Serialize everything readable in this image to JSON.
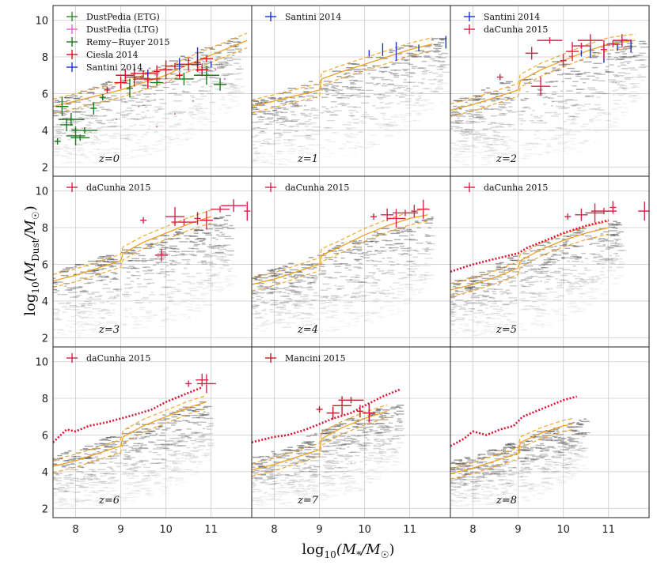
{
  "figure": {
    "xlabel_main": "log",
    "xlabel_sub": "10",
    "xlabel_expr": "(M",
    "xlabel_star": "*",
    "xlabel_sep": "/M",
    "xlabel_sun": "☉",
    "xlabel_close": ")",
    "ylabel_main": "log",
    "ylabel_sub": "10",
    "ylabel_expr": "(M",
    "ylabel_dust": "Dust",
    "ylabel_sep": "/M",
    "ylabel_sun": "☉",
    "ylabel_close": ")"
  },
  "colors": {
    "grey_cloud": "#555555",
    "median": "#f0a020",
    "sph": "#dd1133",
    "etg": "#2e8b22",
    "ltg": "#e060e0",
    "remy": "#1a7a1a",
    "ciesla": "#e01020",
    "santini": "#1a30d0",
    "dacunha": "#d8224a",
    "mancini": "#b8202a"
  },
  "chart_data": {
    "type": "scatter",
    "xlim": [
      7.5,
      11.9
    ],
    "ylim": [
      1.5,
      10.8
    ],
    "xticks": [
      "8",
      "9",
      "10",
      "11"
    ],
    "xtick_values": [
      8,
      9,
      10,
      11
    ],
    "yticks": [
      "2",
      "4",
      "6",
      "8",
      "10"
    ],
    "ytick_values": [
      2,
      4,
      6,
      8,
      10
    ],
    "grid": true,
    "panels": [
      {
        "z": "z=0",
        "cloud": {
          "x1": 7.5,
          "x2": 11.7,
          "upper": [
            5.6,
            6.2,
            6.8,
            7.4,
            8.0,
            8.6,
            9.2
          ],
          "lower": [
            2.2,
            2.2,
            2.3,
            2.6,
            3.2,
            4.2,
            5.6
          ]
        },
        "median_x": [
          7.5,
          8.0,
          8.5,
          9.0,
          9.5,
          10.0,
          10.5,
          11.0,
          11.5,
          11.8
        ],
        "median_y": [
          5.3,
          5.6,
          5.9,
          6.2,
          6.6,
          7.0,
          7.6,
          8.1,
          8.6,
          8.9
        ],
        "spread": 0.4,
        "sph_x": [],
        "sph_y": [],
        "legend": [
          "DustPedia (ETG)",
          "DustPedia (LTG)",
          "Remy−Ruyer 2015",
          "Ciesla 2014",
          "Santini 2014"
        ],
        "legend_colors": [
          "etg",
          "ltg",
          "remy",
          "ciesla",
          "santini"
        ],
        "obs": [
          {
            "series": "ltg",
            "x": [
              8.4,
              8.8,
              9.2,
              9.6,
              10.0,
              10.4,
              10.8,
              11.1,
              9.4,
              10.2,
              8.9,
              10.6,
              9.8,
              11.3
            ],
            "y": [
              6.0,
              6.3,
              6.4,
              6.7,
              6.6,
              6.9,
              7.1,
              7.3,
              5.3,
              4.9,
              4.6,
              5.6,
              4.2,
              6.8
            ]
          },
          {
            "series": "remy",
            "x": [
              7.6,
              7.8,
              8.0,
              8.2,
              8.4,
              7.7,
              8.1,
              7.9,
              9.2,
              9.8,
              10.4,
              10.9,
              8.6,
              11.2
            ],
            "y": [
              3.4,
              4.3,
              3.7,
              4.0,
              5.2,
              5.3,
              3.6,
              4.6,
              6.3,
              6.6,
              6.8,
              7.0,
              5.8,
              6.5
            ]
          },
          {
            "series": "ciesla",
            "x": [
              8.7,
              9.0,
              9.3,
              9.5,
              9.8,
              10.0,
              10.2,
              10.5,
              10.7,
              10.9,
              9.1,
              9.6,
              10.3,
              10.8
            ],
            "y": [
              6.2,
              6.6,
              6.9,
              7.1,
              7.2,
              7.3,
              7.5,
              7.6,
              7.7,
              7.9,
              7.0,
              6.8,
              7.0,
              7.3
            ]
          },
          {
            "series": "santini",
            "x": [
              9.6,
              10.3,
              10.7,
              11.0
            ],
            "y": [
              7.1,
              7.6,
              8.0,
              7.6
            ]
          }
        ]
      },
      {
        "z": "z=1",
        "cloud": {
          "x1": 7.5,
          "x2": 11.8,
          "upper": [
            5.6,
            6.2,
            6.9,
            7.6,
            8.2,
            8.7,
            9.2
          ],
          "lower": [
            2.1,
            2.1,
            2.3,
            2.6,
            3.0,
            4.2,
            5.6
          ]
        },
        "median_x": [
          7.5,
          8.0,
          8.5,
          9.0,
          9.05,
          9.5,
          10.0,
          10.5,
          11.0,
          11.5
        ],
        "median_y": [
          5.3,
          5.6,
          5.9,
          6.2,
          6.8,
          7.2,
          7.6,
          8.0,
          8.4,
          8.7
        ],
        "spread": 0.35,
        "sph_x": [],
        "sph_y": [],
        "legend": [
          "Santini 2014"
        ],
        "legend_colors": [
          "santini"
        ],
        "obs": [
          {
            "series": "santini",
            "x": [
              10.1,
              10.4,
              10.7,
              11.2,
              11.8
            ],
            "y": [
              8.2,
              8.4,
              8.3,
              8.5,
              8.8
            ]
          }
        ]
      },
      {
        "z": "z=2",
        "cloud": {
          "x1": 7.5,
          "x2": 11.8,
          "upper": [
            5.5,
            6.2,
            6.9,
            7.6,
            8.2,
            8.8,
            9.3
          ],
          "lower": [
            2.1,
            2.1,
            2.3,
            2.5,
            2.8,
            4.0,
            5.8
          ]
        },
        "median_x": [
          7.5,
          8.0,
          8.5,
          9.0,
          9.05,
          9.5,
          10.0,
          10.5,
          11.0,
          11.6
        ],
        "median_y": [
          5.1,
          5.4,
          5.8,
          6.2,
          6.7,
          7.3,
          7.8,
          8.3,
          8.7,
          8.9
        ],
        "spread": 0.35,
        "sph_x": [],
        "sph_y": [],
        "legend": [
          "Santini 2014",
          "daCunha 2015"
        ],
        "legend_colors": [
          "santini",
          "dacunha"
        ],
        "obs": [
          {
            "series": "santini",
            "x": [
              10.4,
              10.6,
              10.9,
              11.2,
              11.5
            ],
            "y": [
              8.2,
              8.3,
              8.2,
              8.5,
              8.6
            ]
          },
          {
            "series": "dacunha",
            "x": [
              8.6,
              9.3,
              9.5,
              9.7,
              10.0,
              10.2,
              10.4,
              10.6,
              10.9,
              11.1,
              11.3
            ],
            "y": [
              6.9,
              8.2,
              6.4,
              8.9,
              7.8,
              8.3,
              8.6,
              8.9,
              8.4,
              8.7,
              8.9
            ]
          }
        ]
      },
      {
        "z": "z=3",
        "cloud": {
          "x1": 7.5,
          "x2": 11.5,
          "upper": [
            5.5,
            6.2,
            6.9,
            7.6,
            8.3,
            8.8
          ],
          "lower": [
            2.1,
            2.1,
            2.3,
            2.6,
            3.2,
            5.0
          ]
        },
        "median_x": [
          7.5,
          8.0,
          8.5,
          9.0,
          9.05,
          9.5,
          10.0,
          10.5,
          11.0
        ],
        "median_y": [
          5.1,
          5.4,
          5.8,
          6.2,
          6.6,
          7.2,
          7.7,
          8.2,
          8.6
        ],
        "spread": 0.35,
        "sph_x": [],
        "sph_y": [],
        "legend": [
          "daCunha 2015"
        ],
        "legend_colors": [
          "dacunha"
        ],
        "obs": [
          {
            "series": "dacunha",
            "x": [
              9.5,
              9.9,
              10.2,
              10.4,
              10.7,
              10.9,
              11.2,
              11.5,
              11.8
            ],
            "y": [
              8.4,
              6.5,
              8.6,
              8.3,
              8.5,
              8.4,
              9.0,
              9.2,
              8.9
            ]
          }
        ]
      },
      {
        "z": "z=4",
        "cloud": {
          "x1": 7.5,
          "x2": 11.5,
          "upper": [
            5.3,
            6.0,
            6.8,
            7.5,
            8.2,
            8.8
          ],
          "lower": [
            2.1,
            2.1,
            2.3,
            2.6,
            3.2,
            5.0
          ]
        },
        "median_x": [
          7.5,
          8.0,
          8.5,
          9.0,
          9.05,
          9.5,
          10.0,
          10.5,
          11.0,
          11.4
        ],
        "median_y": [
          4.9,
          5.2,
          5.6,
          6.0,
          6.5,
          7.0,
          7.6,
          8.1,
          8.5,
          8.7
        ],
        "spread": 0.35,
        "sph_x": [],
        "sph_y": [],
        "legend": [
          "daCunha 2015"
        ],
        "legend_colors": [
          "dacunha"
        ],
        "obs": [
          {
            "series": "dacunha",
            "x": [
              10.2,
              10.5,
              10.7,
              10.9,
              11.1,
              11.3
            ],
            "y": [
              8.6,
              8.7,
              8.5,
              8.8,
              8.9,
              9.0
            ]
          }
        ]
      },
      {
        "z": "z=5",
        "cloud": {
          "x1": 7.5,
          "x2": 11.3,
          "upper": [
            5.0,
            5.7,
            6.6,
            7.4,
            8.1,
            8.4
          ],
          "lower": [
            2.1,
            2.1,
            2.3,
            2.7,
            3.6,
            5.2
          ]
        },
        "median_x": [
          7.5,
          8.0,
          8.5,
          9.0,
          9.05,
          9.5,
          10.0,
          10.5,
          11.0
        ],
        "median_y": [
          4.6,
          4.9,
          5.3,
          5.8,
          6.2,
          6.8,
          7.3,
          7.7,
          8.0
        ],
        "spread": 0.35,
        "sph_x": [
          7.5,
          8.0,
          8.5,
          9.0,
          9.2,
          9.6,
          10.0,
          10.5,
          11.0
        ],
        "sph_y": [
          5.6,
          6.0,
          6.3,
          6.6,
          6.9,
          7.3,
          7.7,
          8.1,
          8.4
        ],
        "legend": [
          "daCunha 2015"
        ],
        "legend_colors": [
          "dacunha"
        ],
        "obs": [
          {
            "series": "dacunha",
            "x": [
              10.1,
              10.4,
              10.7,
              10.9,
              11.1,
              11.8
            ],
            "y": [
              8.6,
              8.7,
              8.8,
              8.9,
              9.1,
              8.9
            ]
          }
        ]
      },
      {
        "z": "z=6",
        "cloud": {
          "x1": 7.5,
          "x2": 11.0,
          "upper": [
            4.8,
            5.6,
            6.5,
            7.3,
            8.0
          ],
          "lower": [
            2.1,
            2.1,
            2.3,
            2.9,
            4.5
          ]
        },
        "median_x": [
          7.5,
          8.0,
          8.5,
          9.0,
          9.05,
          9.5,
          10.0,
          10.5,
          10.9
        ],
        "median_y": [
          4.3,
          4.6,
          5.0,
          5.4,
          5.9,
          6.5,
          7.0,
          7.5,
          7.8
        ],
        "spread": 0.35,
        "sph_x": [
          7.5,
          7.8,
          8.0,
          8.3,
          8.7,
          9.0,
          9.3,
          9.7,
          10.0,
          10.4,
          10.8
        ],
        "sph_y": [
          5.6,
          6.3,
          6.2,
          6.5,
          6.7,
          6.9,
          7.1,
          7.4,
          7.8,
          8.2,
          8.6
        ],
        "legend": [
          "daCunha 2015"
        ],
        "legend_colors": [
          "dacunha"
        ],
        "obs": [
          {
            "series": "dacunha",
            "x": [
              10.5,
              10.8,
              10.9
            ],
            "y": [
              8.8,
              9.0,
              8.8
            ]
          }
        ]
      },
      {
        "z": "z=7",
        "cloud": {
          "x1": 7.5,
          "x2": 10.8,
          "upper": [
            4.7,
            5.5,
            6.4,
            7.2,
            7.7
          ],
          "lower": [
            2.1,
            2.1,
            2.3,
            3.0,
            4.6
          ]
        },
        "median_x": [
          7.5,
          8.0,
          8.5,
          9.0,
          9.05,
          9.5,
          10.0,
          10.5
        ],
        "median_y": [
          4.1,
          4.4,
          4.8,
          5.2,
          5.8,
          6.4,
          6.9,
          7.3
        ],
        "spread": 0.35,
        "sph_x": [
          7.5,
          8.0,
          8.3,
          8.7,
          9.0,
          9.3,
          9.7,
          10.0,
          10.4,
          10.8
        ],
        "sph_y": [
          5.6,
          5.9,
          6.0,
          6.3,
          6.6,
          6.9,
          7.2,
          7.6,
          8.1,
          8.5
        ],
        "legend": [
          "Mancini 2015"
        ],
        "legend_colors": [
          "mancini"
        ],
        "obs": [
          {
            "series": "mancini",
            "x": [
              9.0,
              9.3,
              9.5,
              9.7,
              9.9,
              10.1
            ],
            "y": [
              7.4,
              7.2,
              7.6,
              7.9,
              7.3,
              7.2
            ]
          }
        ]
      },
      {
        "z": "z=8",
        "cloud": {
          "x1": 7.5,
          "x2": 10.5,
          "upper": [
            4.5,
            5.3,
            6.2,
            6.9
          ],
          "lower": [
            2.1,
            2.1,
            2.5,
            4.2
          ]
        },
        "median_x": [
          7.5,
          8.0,
          8.5,
          9.0,
          9.05,
          9.5,
          10.0,
          10.2
        ],
        "median_y": [
          3.9,
          4.2,
          4.6,
          5.0,
          5.6,
          6.1,
          6.5,
          6.6
        ],
        "spread": 0.3,
        "sph_x": [
          7.5,
          7.8,
          8.0,
          8.3,
          8.6,
          8.9,
          9.1,
          9.4,
          9.7,
          10.0,
          10.3
        ],
        "sph_y": [
          5.4,
          5.8,
          6.2,
          6.0,
          6.3,
          6.5,
          7.0,
          7.3,
          7.6,
          7.9,
          8.1
        ],
        "legend": [],
        "legend_colors": [],
        "obs": []
      }
    ]
  }
}
